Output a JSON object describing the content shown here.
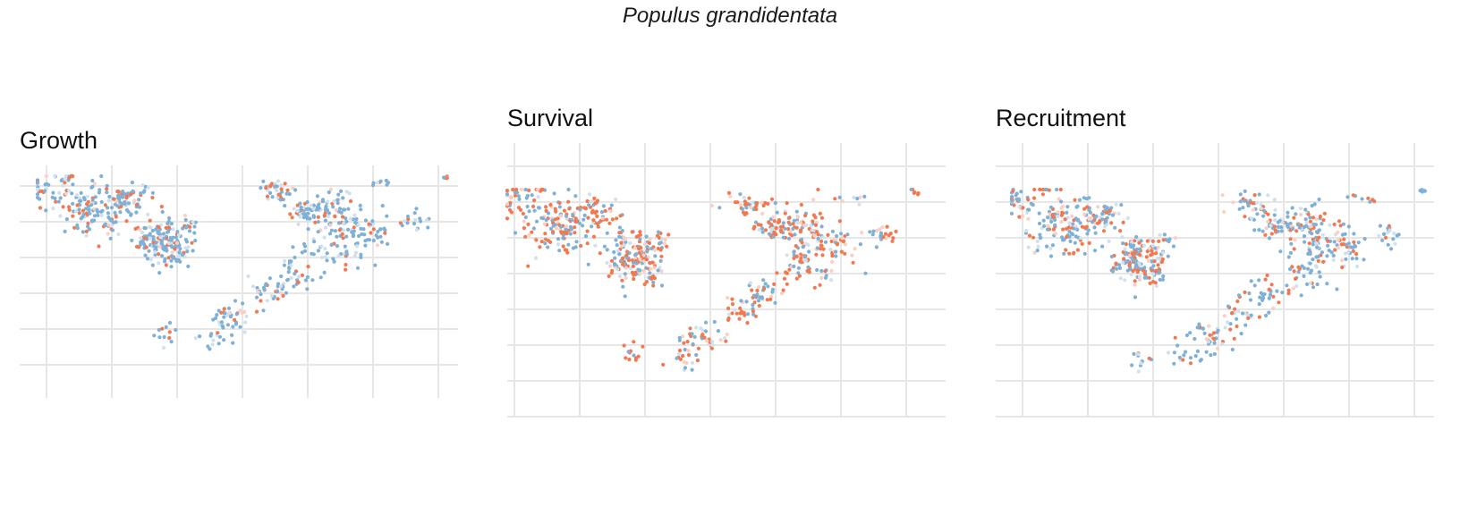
{
  "figure": {
    "title": "Populus grandidentata"
  },
  "palette": {
    "positive": "#f4784f",
    "negative": "#7fb0d6",
    "faint_positive": "#fbcfc1",
    "faint_negative": "#cfe1ef",
    "grid": "#e6e6e6"
  },
  "panels": [
    {
      "id": "growth",
      "title": "Growth",
      "mix": 0.2
    },
    {
      "id": "survival",
      "title": "Survival",
      "mix": 0.58
    },
    {
      "id": "recruitment",
      "title": "Recruitment",
      "mix": 0.38
    }
  ]
}
